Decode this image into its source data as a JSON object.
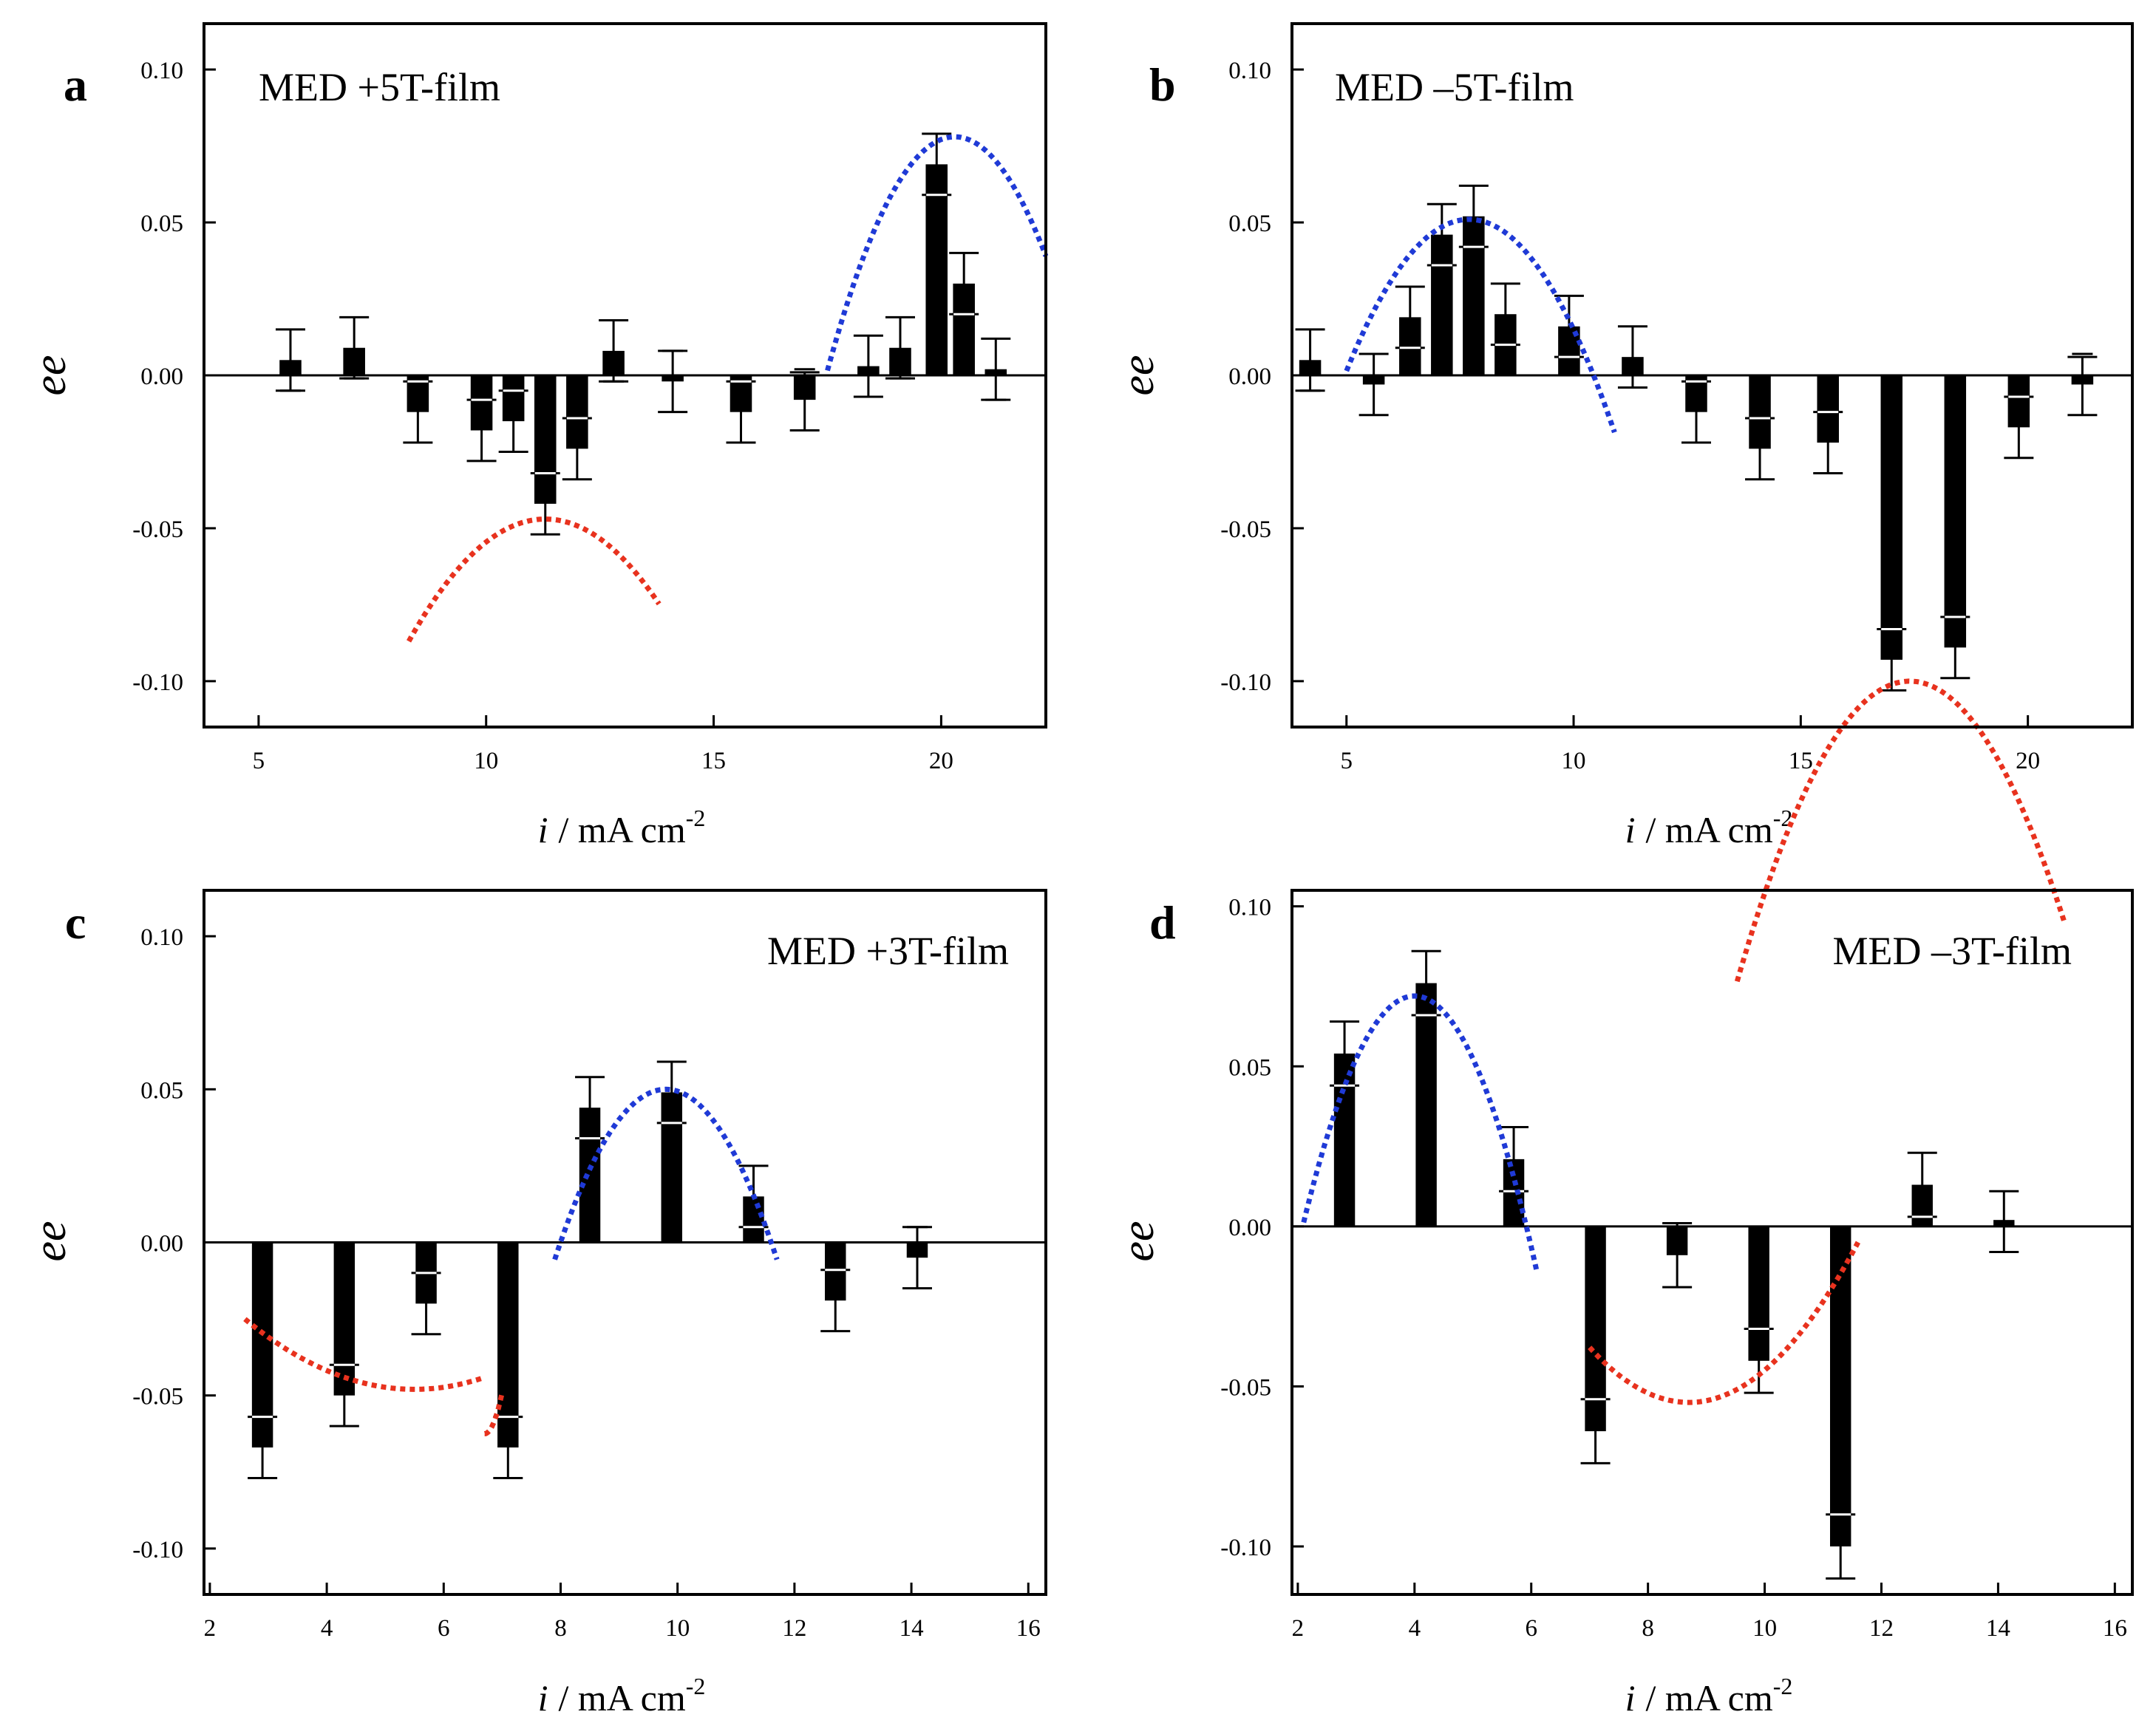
{
  "figure": {
    "xlabel_var": "i",
    "xlabel_units": "/ mA cm",
    "xlabel_exp": "-2",
    "ylabel": "ee"
  },
  "chart_data": [
    {
      "id": "a",
      "letter": "a",
      "type": "bar",
      "title": "MED +5T-film",
      "title_anchor": "left",
      "xlim": [
        3.8,
        22.3
      ],
      "ylim": [
        -0.115,
        0.115
      ],
      "xticks": [
        5,
        10,
        15,
        20
      ],
      "xticklabels": [
        "5",
        "10",
        "15",
        "20"
      ],
      "yticks": [
        -0.1,
        -0.05,
        0,
        0.05,
        0.1
      ],
      "yticklabels": [
        "-0.10",
        "-0.05",
        "0.00",
        "0.05",
        "0.10"
      ],
      "bar_width": 0.48,
      "bars": [
        {
          "x": 5.7,
          "v": 0.005,
          "lo": -0.005,
          "hi": 0.015
        },
        {
          "x": 7.1,
          "v": 0.009,
          "lo": -0.001,
          "hi": 0.019
        },
        {
          "x": 8.5,
          "v": -0.012,
          "lo": -0.022,
          "hi": -0.002
        },
        {
          "x": 9.9,
          "v": -0.018,
          "lo": -0.028,
          "hi": -0.008
        },
        {
          "x": 10.6,
          "v": -0.015,
          "lo": -0.025,
          "hi": -0.005
        },
        {
          "x": 11.3,
          "v": -0.042,
          "lo": -0.052,
          "hi": -0.032
        },
        {
          "x": 12.0,
          "v": -0.024,
          "lo": -0.034,
          "hi": -0.014
        },
        {
          "x": 12.8,
          "v": 0.008,
          "lo": -0.002,
          "hi": 0.018
        },
        {
          "x": 14.1,
          "v": -0.002,
          "lo": -0.012,
          "hi": 0.008
        },
        {
          "x": 15.6,
          "v": -0.012,
          "lo": -0.022,
          "hi": -0.002
        },
        {
          "x": 17.0,
          "v": -0.008,
          "lo": -0.018,
          "hi": 0.001
        },
        {
          "x": 18.4,
          "v": 0.003,
          "lo": -0.007,
          "hi": 0.013
        },
        {
          "x": 19.1,
          "v": 0.009,
          "lo": -0.001,
          "hi": 0.019
        },
        {
          "x": 19.9,
          "v": 0.069,
          "lo": 0.059,
          "hi": 0.079
        },
        {
          "x": 20.5,
          "v": 0.03,
          "lo": 0.02,
          "hi": 0.04
        },
        {
          "x": 21.2,
          "v": 0.002,
          "lo": -0.008,
          "hi": 0.012
        }
      ],
      "fits": [
        {
          "color": "#e8321e",
          "x0": 8.3,
          "x1": 13.8,
          "h": 11.3,
          "k": -0.047,
          "a": 0.00444
        },
        {
          "color": "#1f3ad6",
          "x0": 17.5,
          "x1": 22.3,
          "h": 20.3,
          "k": 0.078,
          "a": 0.00975
        }
      ]
    },
    {
      "id": "b",
      "letter": "b",
      "type": "bar",
      "title": "MED –5T-film",
      "title_anchor": "left",
      "xlim": [
        3.8,
        22.3
      ],
      "ylim": [
        -0.115,
        0.115
      ],
      "xticks": [
        5,
        10,
        15,
        20
      ],
      "xticklabels": [
        "5",
        "10",
        "15",
        "20"
      ],
      "yticks": [
        -0.1,
        -0.05,
        0,
        0.05,
        0.1
      ],
      "yticklabels": [
        "-0.10",
        "-0.05",
        "0.00",
        "0.05",
        "0.10"
      ],
      "bar_width": 0.48,
      "bars": [
        {
          "x": 4.2,
          "v": 0.005,
          "lo": -0.005,
          "hi": 0.015
        },
        {
          "x": 5.6,
          "v": -0.003,
          "lo": -0.013,
          "hi": 0.007
        },
        {
          "x": 6.4,
          "v": 0.019,
          "lo": 0.009,
          "hi": 0.029
        },
        {
          "x": 7.1,
          "v": 0.046,
          "lo": 0.036,
          "hi": 0.056
        },
        {
          "x": 7.8,
          "v": 0.052,
          "lo": 0.042,
          "hi": 0.062
        },
        {
          "x": 8.5,
          "v": 0.02,
          "lo": 0.01,
          "hi": 0.03
        },
        {
          "x": 9.9,
          "v": 0.016,
          "lo": 0.006,
          "hi": 0.026
        },
        {
          "x": 11.3,
          "v": 0.006,
          "lo": -0.004,
          "hi": 0.016
        },
        {
          "x": 12.7,
          "v": -0.012,
          "lo": -0.022,
          "hi": -0.002
        },
        {
          "x": 14.1,
          "v": -0.024,
          "lo": -0.034,
          "hi": -0.014
        },
        {
          "x": 15.6,
          "v": -0.022,
          "lo": -0.032,
          "hi": -0.012
        },
        {
          "x": 17.0,
          "v": -0.093,
          "lo": -0.103,
          "hi": -0.083
        },
        {
          "x": 18.4,
          "v": -0.089,
          "lo": -0.099,
          "hi": -0.079
        },
        {
          "x": 19.8,
          "v": -0.017,
          "lo": -0.027,
          "hi": -0.007
        },
        {
          "x": 21.2,
          "v": -0.003,
          "lo": -0.013,
          "hi": 0.006
        }
      ],
      "fits": [
        {
          "color": "#1f3ad6",
          "x0": 5.0,
          "x1": 10.9,
          "h": 7.7,
          "k": 0.051,
          "a": 0.0068
        },
        {
          "color": "#e8321e",
          "x0": 13.6,
          "x1": 20.8,
          "h": 17.4,
          "k": -0.1,
          "a": 0.0068
        }
      ]
    },
    {
      "id": "c",
      "letter": "c",
      "type": "bar",
      "title": "MED +3T-film",
      "title_anchor": "right",
      "xlim": [
        1.9,
        16.3
      ],
      "ylim": [
        -0.115,
        0.115
      ],
      "xticks": [
        2,
        4,
        6,
        8,
        10,
        12,
        14,
        16
      ],
      "xticklabels": [
        "2",
        "4",
        "6",
        "8",
        "10",
        "12",
        "14",
        "16"
      ],
      "yticks": [
        -0.1,
        -0.05,
        0,
        0.05,
        0.1
      ],
      "yticklabels": [
        "-0.10",
        "-0.05",
        "0.00",
        "0.05",
        "0.10"
      ],
      "bar_width": 0.36,
      "bars": [
        {
          "x": 2.9,
          "v": -0.067,
          "lo": -0.077,
          "hi": -0.057
        },
        {
          "x": 4.3,
          "v": -0.05,
          "lo": -0.06,
          "hi": -0.04
        },
        {
          "x": 5.7,
          "v": -0.02,
          "lo": -0.03,
          "hi": -0.01
        },
        {
          "x": 7.1,
          "v": -0.067,
          "lo": -0.077,
          "hi": -0.057
        },
        {
          "x": 8.5,
          "v": 0.044,
          "lo": 0.034,
          "hi": 0.054
        },
        {
          "x": 9.9,
          "v": 0.049,
          "lo": 0.039,
          "hi": 0.059
        },
        {
          "x": 11.3,
          "v": 0.015,
          "lo": 0.005,
          "hi": 0.025
        },
        {
          "x": 12.7,
          "v": -0.019,
          "lo": -0.029,
          "hi": -0.009
        },
        {
          "x": 14.1,
          "v": -0.005,
          "lo": -0.015,
          "hi": 0.005
        }
      ],
      "fits": [
        {
          "color": "#e8321e",
          "x0": 2.6,
          "x1": 6.7,
          "h": 5.5,
          "k": -0.048,
          "a": -0.00273
        },
        {
          "color": "#e8321e",
          "x0": 6.7,
          "x1": 7.0,
          "h": 6.7,
          "k": -0.0625,
          "a": -0.15
        },
        {
          "color": "#1f3ad6",
          "x0": 7.9,
          "x1": 11.7,
          "h": 9.8,
          "k": 0.05,
          "a": 0.0154
        }
      ]
    },
    {
      "id": "d",
      "letter": "d",
      "type": "bar",
      "title": "MED –3T-film",
      "title_anchor": "right",
      "xlim": [
        1.9,
        16.3
      ],
      "ylim": [
        -0.115,
        0.105
      ],
      "xticks": [
        2,
        4,
        6,
        8,
        10,
        12,
        14,
        16
      ],
      "xticklabels": [
        "2",
        "4",
        "6",
        "8",
        "10",
        "12",
        "14",
        "16"
      ],
      "yticks": [
        -0.1,
        -0.05,
        0,
        0.05,
        0.1
      ],
      "yticklabels": [
        "-0.10",
        "-0.05",
        "0.00",
        "0.05",
        "0.10"
      ],
      "bar_width": 0.36,
      "bars": [
        {
          "x": 2.8,
          "v": 0.054,
          "lo": 0.044,
          "hi": 0.064
        },
        {
          "x": 4.2,
          "v": 0.076,
          "lo": 0.066,
          "hi": 0.086
        },
        {
          "x": 5.7,
          "v": 0.021,
          "lo": 0.011,
          "hi": 0.031
        },
        {
          "x": 7.1,
          "v": -0.064,
          "lo": -0.074,
          "hi": -0.054
        },
        {
          "x": 8.5,
          "v": -0.009,
          "lo": -0.019,
          "hi": 0.001
        },
        {
          "x": 9.9,
          "v": -0.042,
          "lo": -0.052,
          "hi": -0.032
        },
        {
          "x": 11.3,
          "v": -0.1,
          "lo": -0.11,
          "hi": -0.09
        },
        {
          "x": 12.7,
          "v": 0.013,
          "lo": 0.003,
          "hi": 0.023
        },
        {
          "x": 14.1,
          "v": 0.002,
          "lo": -0.008,
          "hi": 0.011
        }
      ],
      "fits": [
        {
          "color": "#1f3ad6",
          "x0": 2.1,
          "x1": 6.1,
          "h": 4.0,
          "k": 0.072,
          "a": 0.0196
        },
        {
          "color": "#e8321e",
          "x0": 7.0,
          "x1": 11.6,
          "h": 8.7,
          "k": -0.055,
          "a": -0.00595
        }
      ]
    }
  ]
}
